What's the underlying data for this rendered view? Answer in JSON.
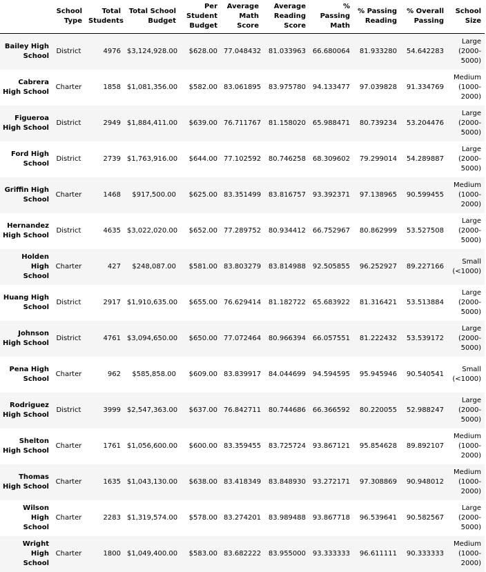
{
  "table": {
    "columns": [
      "",
      "School\nType",
      "Total\nStudents",
      "Total School\nBudget",
      "Per\nStudent\nBudget",
      "Average\nMath\nScore",
      "Average\nReading\nScore",
      "% Passing\nMath",
      "% Passing\nReading",
      "% Overall\nPassing",
      "School\nSize"
    ],
    "rows": [
      {
        "name": "Bailey High\nSchool",
        "cells": [
          "District",
          "4976",
          "$3,124,928.00",
          "$628.00",
          "77.048432",
          "81.033963",
          "66.680064",
          "81.933280",
          "54.642283",
          "Large\n(2000-\n5000)"
        ]
      },
      {
        "name": "Cabrera\nHigh School",
        "cells": [
          "Charter",
          "1858",
          "$1,081,356.00",
          "$582.00",
          "83.061895",
          "83.975780",
          "94.133477",
          "97.039828",
          "91.334769",
          "Medium\n(1000-\n2000)"
        ]
      },
      {
        "name": "Figueroa\nHigh School",
        "cells": [
          "District",
          "2949",
          "$1,884,411.00",
          "$639.00",
          "76.711767",
          "81.158020",
          "65.988471",
          "80.739234",
          "53.204476",
          "Large\n(2000-\n5000)"
        ]
      },
      {
        "name": "Ford High\nSchool",
        "cells": [
          "District",
          "2739",
          "$1,763,916.00",
          "$644.00",
          "77.102592",
          "80.746258",
          "68.309602",
          "79.299014",
          "54.289887",
          "Large\n(2000-\n5000)"
        ]
      },
      {
        "name": "Griffin High\nSchool",
        "cells": [
          "Charter",
          "1468",
          "$917,500.00",
          "$625.00",
          "83.351499",
          "83.816757",
          "93.392371",
          "97.138965",
          "90.599455",
          "Medium\n(1000-\n2000)"
        ]
      },
      {
        "name": "Hernandez\nHigh School",
        "cells": [
          "District",
          "4635",
          "$3,022,020.00",
          "$652.00",
          "77.289752",
          "80.934412",
          "66.752967",
          "80.862999",
          "53.527508",
          "Large\n(2000-\n5000)"
        ]
      },
      {
        "name": "Holden High\nSchool",
        "cells": [
          "Charter",
          "427",
          "$248,087.00",
          "$581.00",
          "83.803279",
          "83.814988",
          "92.505855",
          "96.252927",
          "89.227166",
          "Small\n(<1000)"
        ]
      },
      {
        "name": "Huang High\nSchool",
        "cells": [
          "District",
          "2917",
          "$1,910,635.00",
          "$655.00",
          "76.629414",
          "81.182722",
          "65.683922",
          "81.316421",
          "53.513884",
          "Large\n(2000-\n5000)"
        ]
      },
      {
        "name": "Johnson\nHigh School",
        "cells": [
          "District",
          "4761",
          "$3,094,650.00",
          "$650.00",
          "77.072464",
          "80.966394",
          "66.057551",
          "81.222432",
          "53.539172",
          "Large\n(2000-\n5000)"
        ]
      },
      {
        "name": "Pena High\nSchool",
        "cells": [
          "Charter",
          "962",
          "$585,858.00",
          "$609.00",
          "83.839917",
          "84.044699",
          "94.594595",
          "95.945946",
          "90.540541",
          "Small\n(<1000)"
        ]
      },
      {
        "name": "Rodriguez\nHigh School",
        "cells": [
          "District",
          "3999",
          "$2,547,363.00",
          "$637.00",
          "76.842711",
          "80.744686",
          "66.366592",
          "80.220055",
          "52.988247",
          "Large\n(2000-\n5000)"
        ]
      },
      {
        "name": "Shelton\nHigh School",
        "cells": [
          "Charter",
          "1761",
          "$1,056,600.00",
          "$600.00",
          "83.359455",
          "83.725724",
          "93.867121",
          "95.854628",
          "89.892107",
          "Medium\n(1000-\n2000)"
        ]
      },
      {
        "name": "Thomas\nHigh School",
        "cells": [
          "Charter",
          "1635",
          "$1,043,130.00",
          "$638.00",
          "83.418349",
          "83.848930",
          "93.272171",
          "97.308869",
          "90.948012",
          "Medium\n(1000-\n2000)"
        ]
      },
      {
        "name": "Wilson High\nSchool",
        "cells": [
          "Charter",
          "2283",
          "$1,319,574.00",
          "$578.00",
          "83.274201",
          "83.989488",
          "93.867718",
          "96.539641",
          "90.582567",
          "Large\n(2000-\n5000)"
        ]
      },
      {
        "name": "Wright High\nSchool",
        "cells": [
          "Charter",
          "1800",
          "$1,049,400.00",
          "$583.00",
          "83.682222",
          "83.955000",
          "93.333333",
          "96.611111",
          "90.333333",
          "Medium\n(1000-\n2000)"
        ]
      }
    ]
  }
}
